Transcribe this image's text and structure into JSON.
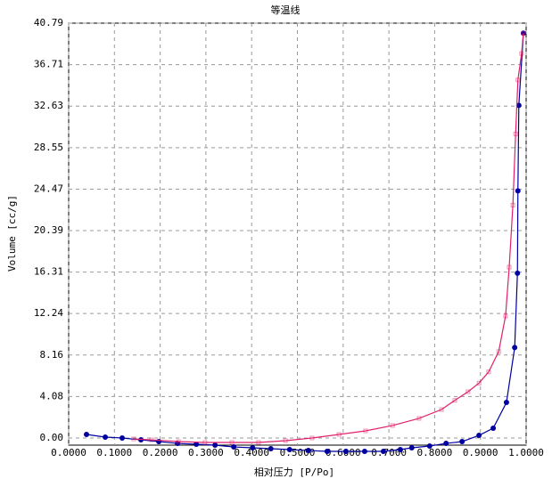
{
  "chart_data": {
    "type": "line",
    "title": "等温线",
    "xlabel": "相对压力 [P/Po]",
    "ylabel": "Volume [cc/g]",
    "xlim": [
      0,
      1
    ],
    "ylim": [
      -0.7,
      40.79
    ],
    "grid": true,
    "xticks": [
      {
        "value": 0,
        "label": "0.0000"
      },
      {
        "value": 0.1,
        "label": "0.1000"
      },
      {
        "value": 0.2,
        "label": "0.2000"
      },
      {
        "value": 0.3,
        "label": "0.3000"
      },
      {
        "value": 0.4,
        "label": "0.4000"
      },
      {
        "value": 0.5,
        "label": "0.5000"
      },
      {
        "value": 0.6,
        "label": "0.6000"
      },
      {
        "value": 0.7,
        "label": "0.7000"
      },
      {
        "value": 0.8,
        "label": "0.8000"
      },
      {
        "value": 0.9,
        "label": "0.9000"
      },
      {
        "value": 1,
        "label": "1.0000"
      }
    ],
    "yticks": [
      {
        "value": 0,
        "label": "0.00"
      },
      4.08,
      8.16,
      12.24,
      16.31,
      20.39,
      24.47,
      28.55,
      32.63,
      36.71,
      40.79
    ],
    "series": [
      {
        "color": "#0000a0",
        "marker": "circle",
        "x": [
          0.039,
          0.08,
          0.117,
          0.158,
          0.197,
          0.238,
          0.279,
          0.32,
          0.361,
          0.402,
          0.442,
          0.483,
          0.524,
          0.565,
          0.606,
          0.647,
          0.688,
          0.725,
          0.75,
          0.789,
          0.825,
          0.86,
          0.897,
          0.928,
          0.957,
          0.975,
          0.981,
          0.982,
          0.984,
          0.994
        ],
        "values": [
          0.35,
          0.09,
          0,
          -0.18,
          -0.35,
          -0.53,
          -0.61,
          -0.7,
          -0.88,
          -0.96,
          -1.05,
          -1.14,
          -1.23,
          -1.31,
          -1.31,
          -1.31,
          -1.31,
          -1.14,
          -0.96,
          -0.79,
          -0.53,
          -0.35,
          0.26,
          0.96,
          3.5,
          8.9,
          16.2,
          24.3,
          32.7,
          39.8
        ]
      },
      {
        "color": "#e0206a",
        "marker": "square",
        "x": [
          0.994,
          0.99,
          0.982,
          0.977,
          0.971,
          0.963,
          0.955,
          0.94,
          0.918,
          0.897,
          0.873,
          0.844,
          0.815,
          0.766,
          0.708,
          0.649,
          0.591,
          0.532,
          0.474,
          0.415,
          0.357,
          0.298,
          0.24,
          0.181,
          0.142
        ],
        "values": [
          39.8,
          37.8,
          35.2,
          29.9,
          22.9,
          16.8,
          12.0,
          8.5,
          6.5,
          5.4,
          4.55,
          3.7,
          2.8,
          1.93,
          1.23,
          0.7,
          0.35,
          0,
          -0.26,
          -0.44,
          -0.44,
          -0.44,
          -0.35,
          -0.18,
          -0.09
        ]
      }
    ]
  }
}
